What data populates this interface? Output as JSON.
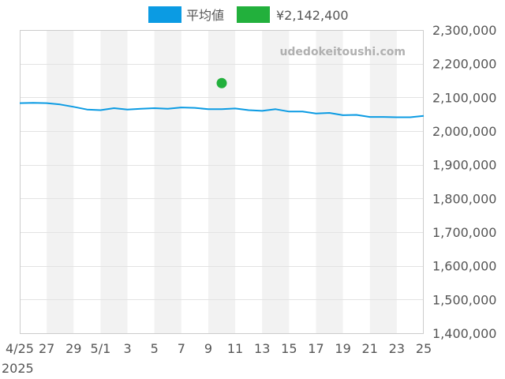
{
  "chart_data": {
    "type": "line",
    "watermark": "udedokeitoushi.com",
    "legend": [
      {
        "label": "平均値",
        "color": "#0b9be3"
      },
      {
        "label": "¥2,142,400",
        "color": "#22b03c"
      }
    ],
    "ylim": [
      1400000,
      2300000
    ],
    "y_ticks": [
      "1,400,000",
      "1,500,000",
      "1,600,000",
      "1,700,000",
      "1,800,000",
      "1,900,000",
      "2,000,000",
      "2,100,000",
      "2,200,000",
      "2,300,000"
    ],
    "x_ticks": [
      {
        "day": 0,
        "label": "4/25"
      },
      {
        "day": 2,
        "label": "27"
      },
      {
        "day": 4,
        "label": "29"
      },
      {
        "day": 6,
        "label": "5/1"
      },
      {
        "day": 8,
        "label": "3"
      },
      {
        "day": 10,
        "label": "5"
      },
      {
        "day": 12,
        "label": "7"
      },
      {
        "day": 14,
        "label": "9"
      },
      {
        "day": 16,
        "label": "11"
      },
      {
        "day": 18,
        "label": "13"
      },
      {
        "day": 20,
        "label": "15"
      },
      {
        "day": 22,
        "label": "17"
      },
      {
        "day": 24,
        "label": "19"
      },
      {
        "day": 26,
        "label": "21"
      },
      {
        "day": 28,
        "label": "23"
      },
      {
        "day": 30,
        "label": "25"
      }
    ],
    "year_label": "2025",
    "series": [
      {
        "name": "平均値",
        "color": "#0b9be3",
        "x": [
          "4/25",
          "4/26",
          "4/27",
          "4/28",
          "4/29",
          "4/30",
          "5/1",
          "5/2",
          "5/3",
          "5/4",
          "5/5",
          "5/6",
          "5/7",
          "5/8",
          "5/9",
          "5/10",
          "5/11",
          "5/12",
          "5/13",
          "5/14",
          "5/15",
          "5/16",
          "5/17",
          "5/18",
          "5/19",
          "5/20",
          "5/21",
          "5/22",
          "5/23",
          "5/24",
          "5/25"
        ],
        "values": [
          2083000,
          2084000,
          2083000,
          2079000,
          2072000,
          2064000,
          2062000,
          2068000,
          2064000,
          2066000,
          2068000,
          2066000,
          2070000,
          2069000,
          2065000,
          2065000,
          2067000,
          2062000,
          2060000,
          2065000,
          2058000,
          2058000,
          2052000,
          2054000,
          2047000,
          2048000,
          2042000,
          2042000,
          2041000,
          2041000,
          2045000
        ]
      },
      {
        "name": "¥2,142,400",
        "color": "#22b03c",
        "type": "scatter",
        "x": [
          "5/10"
        ],
        "values": [
          2142400
        ]
      }
    ]
  }
}
